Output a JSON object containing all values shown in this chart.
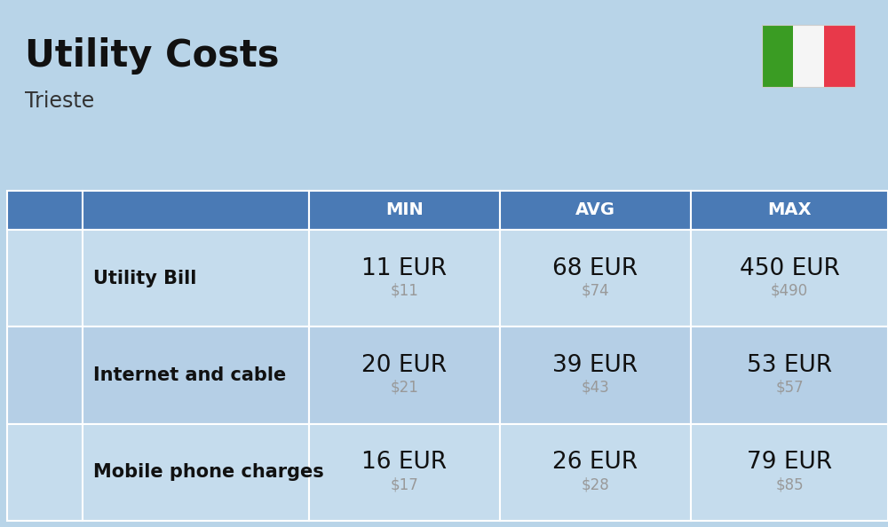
{
  "title": "Utility Costs",
  "subtitle": "Trieste",
  "background_color": "#b8d4e8",
  "header_bg_color": "#4a7ab5",
  "header_text_color": "#ffffff",
  "row_colors": [
    "#c5dced",
    "#b5cfe6"
  ],
  "col_headers": [
    "MIN",
    "AVG",
    "MAX"
  ],
  "rows": [
    {
      "label": "Utility Bill",
      "min_eur": "11 EUR",
      "min_usd": "$11",
      "avg_eur": "68 EUR",
      "avg_usd": "$74",
      "max_eur": "450 EUR",
      "max_usd": "$490"
    },
    {
      "label": "Internet and cable",
      "min_eur": "20 EUR",
      "min_usd": "$21",
      "avg_eur": "39 EUR",
      "avg_usd": "$43",
      "max_eur": "53 EUR",
      "max_usd": "$57"
    },
    {
      "label": "Mobile phone charges",
      "min_eur": "16 EUR",
      "min_usd": "$17",
      "avg_eur": "26 EUR",
      "avg_usd": "$28",
      "max_eur": "79 EUR",
      "max_usd": "$85"
    }
  ],
  "eur_fontsize": 19,
  "usd_fontsize": 12,
  "label_fontsize": 15,
  "header_fontsize": 14,
  "usd_color": "#999999",
  "flag_green": "#3a9c23",
  "flag_white": "#f5f5f5",
  "flag_red": "#e8394a",
  "title_fontsize": 30,
  "subtitle_fontsize": 17,
  "title_color": "#111111",
  "subtitle_color": "#333333",
  "label_color": "#111111"
}
